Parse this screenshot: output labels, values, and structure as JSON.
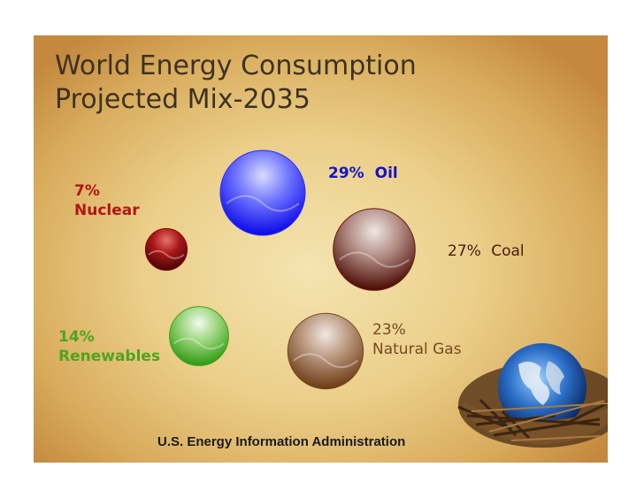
{
  "slide": {
    "title_line1": "World Energy Consumption",
    "title_line2": "Projected Mix-2035",
    "source": "U.S. Energy Information Administration"
  },
  "image": {
    "icon": "globe-in-nest-icon"
  },
  "chart_data": {
    "type": "bubble",
    "title": "World Energy Consumption Projected Mix-2035",
    "unit": "%",
    "series": [
      {
        "name": "Oil",
        "percent_label": "29%",
        "value": 29,
        "color": "#2a2aff",
        "label_color": "#1414c8"
      },
      {
        "name": "Coal",
        "percent_label": "27%",
        "value": 27,
        "color": "#6b1a0a",
        "label_color": "#4a1a10"
      },
      {
        "name": "Natural Gas",
        "percent_label": "23%",
        "value": 23,
        "color": "#7a4a1e",
        "label_color": "#7a4a1e"
      },
      {
        "name": "Renewables",
        "percent_label": "14%",
        "value": 14,
        "color": "#3fa31a",
        "label_color": "#4ea41e"
      },
      {
        "name": "Nuclear",
        "percent_label": "7%",
        "value": 7,
        "color": "#8b0c0c",
        "label_color": "#b41414"
      }
    ]
  }
}
